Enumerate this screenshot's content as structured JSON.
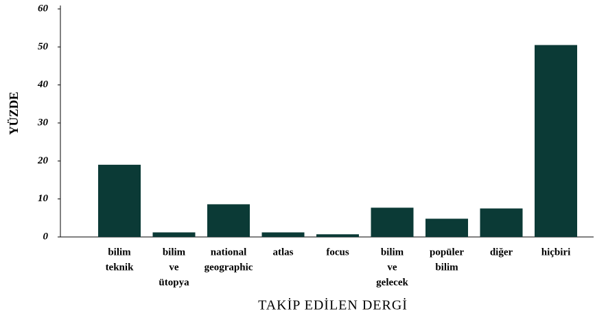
{
  "chart_data": {
    "type": "bar",
    "ylabel": "YÜZDE",
    "xlabel": "TAKİP EDİLEN DERGİ",
    "categories": [
      [
        "bilim",
        "teknik"
      ],
      [
        "bilim",
        "ve",
        "ütopya"
      ],
      [
        "national",
        "geographic"
      ],
      [
        "atlas"
      ],
      [
        "focus"
      ],
      [
        "bilim",
        "ve",
        "gelecek"
      ],
      [
        "popüler",
        "bilim"
      ],
      [
        "diğer"
      ],
      [
        "hiçbiri"
      ]
    ],
    "values": [
      19,
      1.2,
      8.6,
      1.2,
      0.7,
      7.7,
      4.8,
      7.5,
      50.5
    ],
    "color": "#0b3a36",
    "ylim": [
      0,
      60
    ],
    "yticks": [
      0,
      10,
      20,
      30,
      40,
      50,
      60
    ],
    "grid": false
  }
}
